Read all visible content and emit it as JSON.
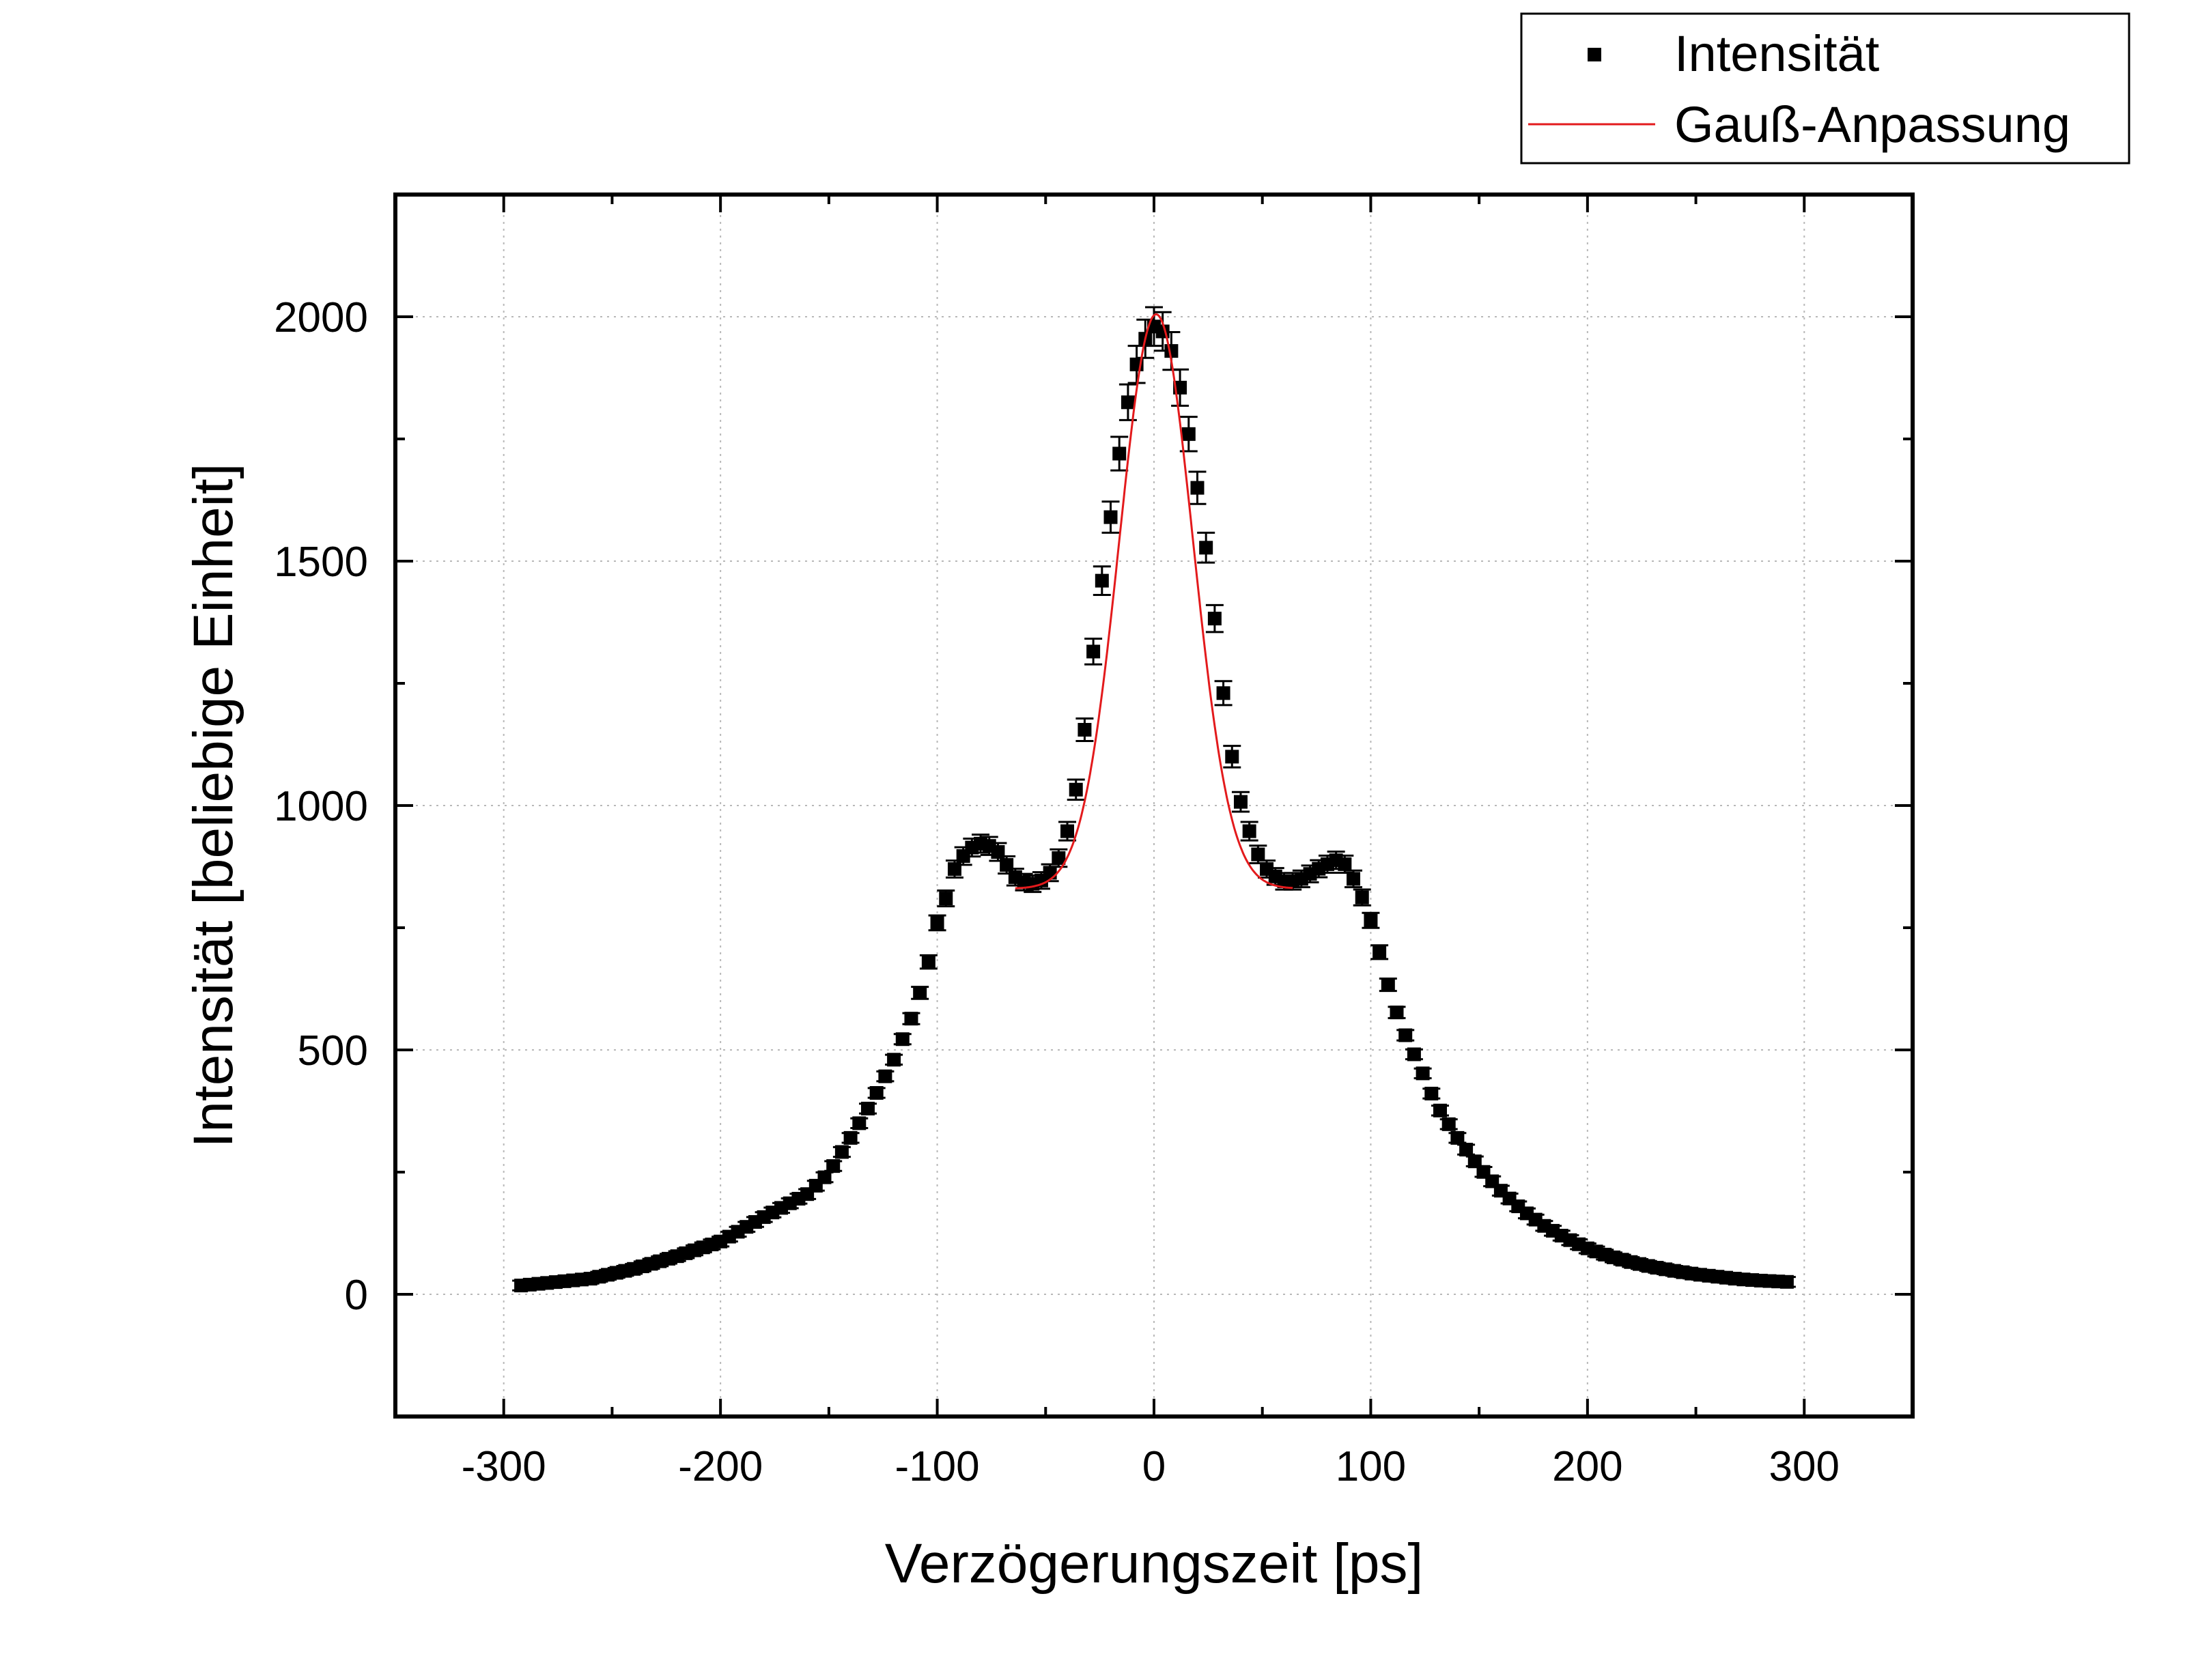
{
  "chart_data": {
    "type": "scatter",
    "xlabel": "Verzögerungszeit [ps]",
    "ylabel": "Intensität [beliebige Einheit]",
    "xlim": [
      -350,
      350
    ],
    "ylim": [
      -250,
      2250
    ],
    "x_ticks": [
      -300,
      -200,
      -100,
      0,
      100,
      200,
      300
    ],
    "y_ticks": [
      0,
      500,
      1000,
      1500,
      2000
    ],
    "grid": true,
    "legend_position": "top-right, outside plot",
    "series": [
      {
        "name": "Intensität",
        "kind": "scatter-with-error-bars",
        "color": "#000000",
        "x_step": 4,
        "points": [
          [
            -292,
            18
          ],
          [
            -260,
            32
          ],
          [
            -240,
            52
          ],
          [
            -220,
            78
          ],
          [
            -200,
            108
          ],
          [
            -180,
            158
          ],
          [
            -160,
            205
          ],
          [
            -150,
            248
          ],
          [
            -140,
            320
          ],
          [
            -130,
            395
          ],
          [
            -120,
            480
          ],
          [
            -110,
            585
          ],
          [
            -104,
            680
          ],
          [
            -100,
            760
          ],
          [
            -96,
            810
          ],
          [
            -92,
            870
          ],
          [
            -86,
            910
          ],
          [
            -80,
            922
          ],
          [
            -74,
            915
          ],
          [
            -70,
            895
          ],
          [
            -66,
            862
          ],
          [
            -62,
            845
          ],
          [
            -56,
            840
          ],
          [
            -50,
            850
          ],
          [
            -46,
            875
          ],
          [
            -42,
            910
          ],
          [
            -38,
            985
          ],
          [
            -34,
            1080
          ],
          [
            -30,
            1230
          ],
          [
            -26,
            1400
          ],
          [
            -22,
            1520
          ],
          [
            -18,
            1660
          ],
          [
            -14,
            1780
          ],
          [
            -10,
            1870
          ],
          [
            -6,
            1935
          ],
          [
            -2,
            1975
          ],
          [
            0,
            1980
          ],
          [
            2,
            1980
          ],
          [
            6,
            1960
          ],
          [
            10,
            1900
          ],
          [
            14,
            1810
          ],
          [
            18,
            1710
          ],
          [
            22,
            1590
          ],
          [
            26,
            1465
          ],
          [
            30,
            1300
          ],
          [
            34,
            1160
          ],
          [
            38,
            1040
          ],
          [
            42,
            975
          ],
          [
            46,
            920
          ],
          [
            50,
            880
          ],
          [
            54,
            860
          ],
          [
            60,
            845
          ],
          [
            66,
            845
          ],
          [
            72,
            860
          ],
          [
            78,
            876
          ],
          [
            84,
            888
          ],
          [
            88,
            880
          ],
          [
            92,
            850
          ],
          [
            96,
            812
          ],
          [
            100,
            765
          ],
          [
            104,
            700
          ],
          [
            110,
            600
          ],
          [
            116,
            530
          ],
          [
            124,
            452
          ],
          [
            130,
            390
          ],
          [
            140,
            320
          ],
          [
            150,
            260
          ],
          [
            160,
            212
          ],
          [
            170,
            172
          ],
          [
            180,
            140
          ],
          [
            190,
            115
          ],
          [
            200,
            94
          ],
          [
            210,
            78
          ],
          [
            220,
            66
          ],
          [
            230,
            56
          ],
          [
            240,
            48
          ],
          [
            250,
            41
          ],
          [
            260,
            36
          ],
          [
            270,
            31
          ],
          [
            280,
            28
          ],
          [
            294,
            25
          ]
        ]
      },
      {
        "name": "Gauß-Anpassung",
        "kind": "line",
        "color": "#e31a1c",
        "x_range": [
          -64,
          64
        ],
        "model": {
          "y0": 830,
          "amplitude": 1175,
          "center": 1,
          "sigma": 17
        }
      }
    ]
  }
}
